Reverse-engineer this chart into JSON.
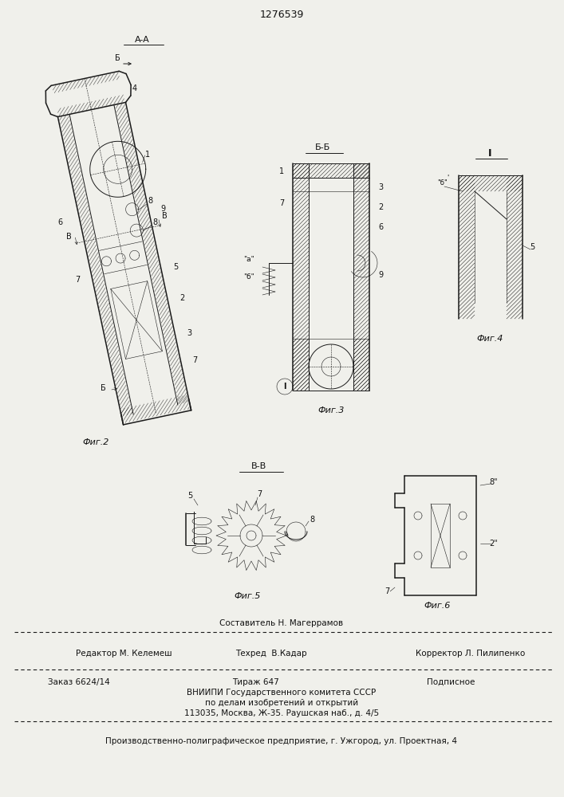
{
  "patent_number": "1276539",
  "bg_color": "#f0f0eb",
  "line_color": "#1a1a1a",
  "fig_width": 7.07,
  "fig_height": 10.0,
  "footer": {
    "line1_center": "Составитель Н. Магеррамов",
    "line2_left": "Редактор М. Келемеш",
    "line2_center": "Техред  В.Кадар",
    "line2_right": "Корректор Л. Пилипенко",
    "line3_left": "Заказ 6624/14",
    "line3_center": "Тираж 647",
    "line3_right": "Подписное",
    "line4": "ВНИИПИ Государственного комитета СССР",
    "line5": "по делам изобретений и открытий",
    "line6": "113035, Москва, Ж-35. Раушская наб., д. 4/5",
    "line7": "Производственно-полиграфическое предприятие, г. Ужгород, ул. Проектная, 4"
  }
}
